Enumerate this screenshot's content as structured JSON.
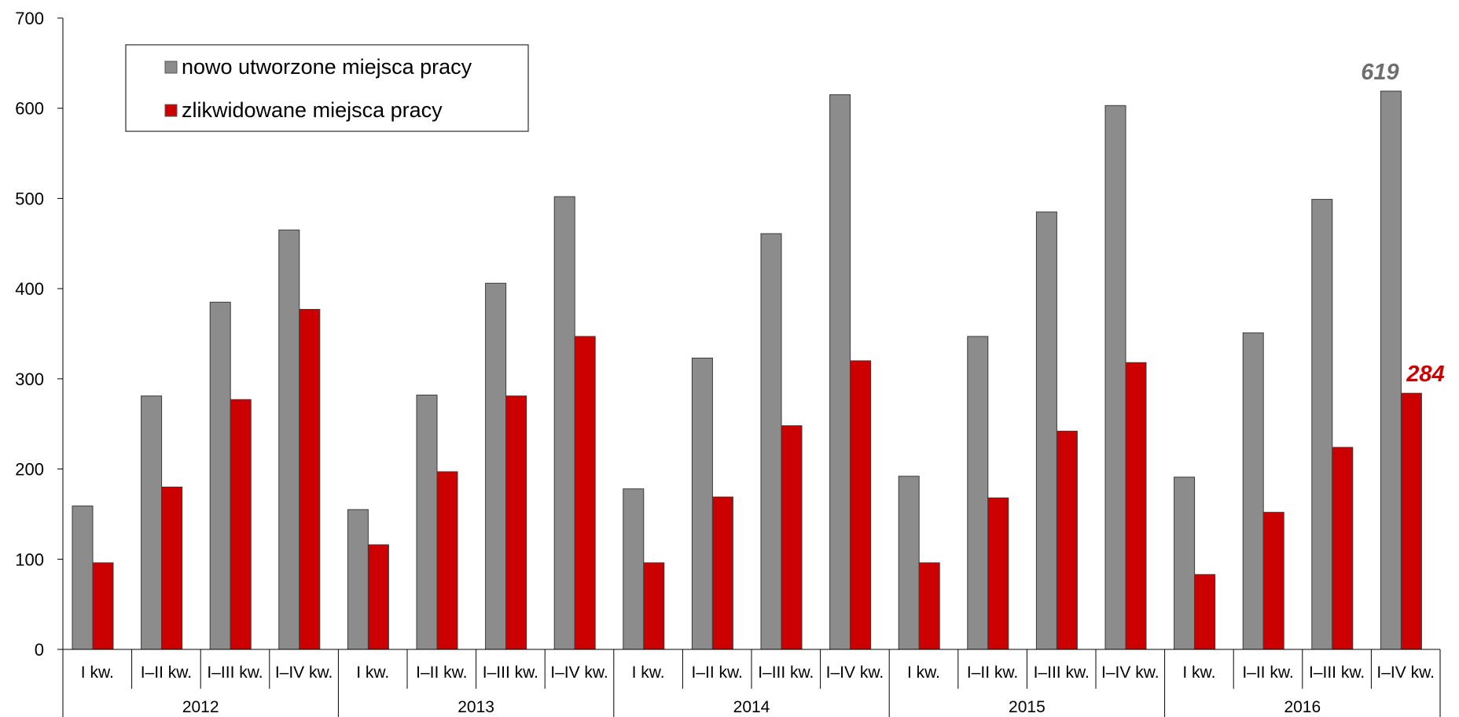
{
  "chart_data": {
    "type": "bar",
    "title": "",
    "xlabel": "",
    "ylabel": "",
    "ylim": [
      0,
      700
    ],
    "yticks": [
      0,
      100,
      200,
      300,
      400,
      500,
      600,
      700
    ],
    "grid": false,
    "legend_position": "top-left",
    "groups": [
      "2012",
      "2013",
      "2014",
      "2015",
      "2016"
    ],
    "categories": [
      "I kw.",
      "I–II kw.",
      "I–III kw.",
      "I–IV kw.",
      "I kw.",
      "I–II kw.",
      "I–III kw.",
      "I–IV kw.",
      "I kw.",
      "I–II kw.",
      "I–III kw.",
      "I–IV kw.",
      "I kw.",
      "I–II kw.",
      "I–III kw.",
      "I–IV kw.",
      "I kw.",
      "I–II kw.",
      "I–III kw.",
      "I–IV kw."
    ],
    "series": [
      {
        "name": "nowo utworzone miejsca pracy",
        "color": "#8c8c8c",
        "values": [
          159,
          281,
          385,
          465,
          155,
          282,
          406,
          502,
          178,
          323,
          461,
          615,
          192,
          347,
          485,
          603,
          191,
          351,
          499,
          619
        ],
        "labeled_values": [
          {
            "index": 19,
            "text": "619"
          }
        ]
      },
      {
        "name": "zlikwidowane miejsca pracy",
        "color": "#cc0000",
        "values": [
          96,
          180,
          277,
          377,
          116,
          197,
          281,
          347,
          96,
          169,
          248,
          320,
          96,
          168,
          242,
          318,
          83,
          152,
          224,
          284
        ],
        "labeled_values": [
          {
            "index": 19,
            "text": "284"
          }
        ]
      }
    ]
  }
}
